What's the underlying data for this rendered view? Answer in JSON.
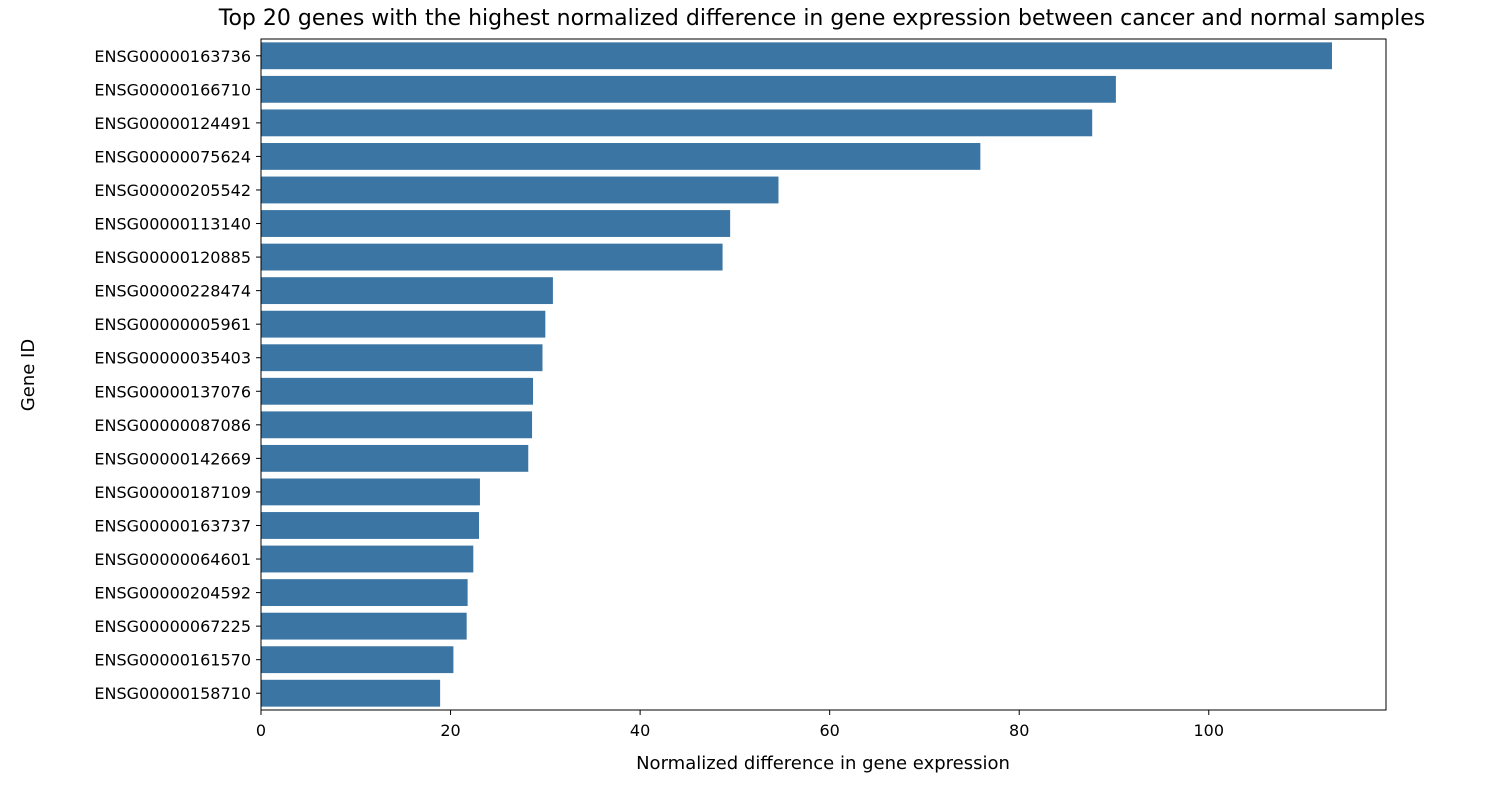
{
  "chart_data": {
    "type": "bar",
    "orientation": "horizontal",
    "title": "Top 20 genes with the highest normalized difference in gene expression between cancer and normal samples",
    "xlabel": "Normalized difference in gene expression",
    "ylabel": "Gene ID",
    "xlim": [
      0,
      118.7
    ],
    "xticks": [
      0,
      20,
      40,
      60,
      80,
      100
    ],
    "grid": false,
    "bar_color": "#3b75a3",
    "categories": [
      "ENSG00000163736",
      "ENSG00000166710",
      "ENSG00000124491",
      "ENSG00000075624",
      "ENSG00000205542",
      "ENSG00000113140",
      "ENSG00000120885",
      "ENSG00000228474",
      "ENSG00000005961",
      "ENSG00000035403",
      "ENSG00000137076",
      "ENSG00000087086",
      "ENSG00000142669",
      "ENSG00000187109",
      "ENSG00000163737",
      "ENSG00000064601",
      "ENSG00000204592",
      "ENSG00000067225",
      "ENSG00000161570",
      "ENSG00000158710"
    ],
    "values": [
      113.0,
      90.2,
      87.7,
      75.9,
      54.6,
      49.5,
      48.7,
      30.8,
      30.0,
      29.7,
      28.7,
      28.6,
      28.2,
      23.1,
      23.0,
      22.4,
      21.8,
      21.7,
      20.3,
      18.9
    ]
  }
}
